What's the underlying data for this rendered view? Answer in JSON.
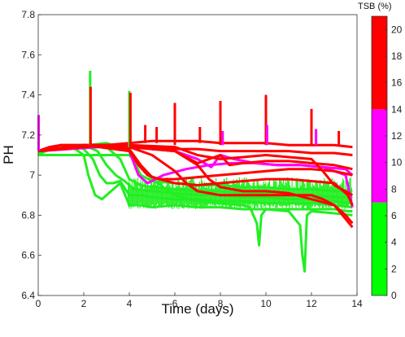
{
  "chart_data": {
    "type": "line",
    "xlabel": "Time (days)",
    "ylabel": "PH",
    "xlim": [
      0,
      14
    ],
    "ylim": [
      6.4,
      7.8
    ],
    "xticks": [
      0,
      2,
      4,
      6,
      8,
      10,
      12,
      14
    ],
    "yticks": [
      6.4,
      6.6,
      6.8,
      7.0,
      7.2,
      7.4,
      7.6,
      7.8
    ],
    "ytick_labels": [
      "6.4",
      "6.6",
      "6.8",
      "7",
      "7.2",
      "7.4",
      "7.6",
      "7.8"
    ],
    "grid": false,
    "colorbar": {
      "title": "TSB (%)",
      "range": [
        0,
        21
      ],
      "ticks": [
        0,
        2,
        4,
        6,
        8,
        10,
        12,
        14,
        16,
        18,
        20
      ],
      "bands": [
        {
          "from": 0,
          "to": 7,
          "color": "#00ff00"
        },
        {
          "from": 7,
          "to": 14,
          "color": "#ff00ff"
        },
        {
          "from": 14,
          "to": 21,
          "color": "#ff0000"
        }
      ]
    },
    "series": [
      {
        "color": "#22ee22",
        "x": [
          0,
          0.3,
          1,
          1.5,
          2,
          2.2,
          2.5,
          2.8,
          3,
          3.3,
          3.6,
          4,
          4.5,
          5,
          6,
          7,
          8,
          9,
          10,
          11,
          12,
          13,
          13.6,
          13.8
        ],
        "y": [
          7.1,
          7.13,
          7.14,
          7.14,
          7.1,
          7.0,
          6.9,
          6.88,
          6.9,
          6.93,
          6.96,
          6.85,
          6.85,
          6.84,
          6.85,
          6.84,
          6.84,
          6.83,
          6.83,
          6.83,
          6.83,
          6.83,
          6.82,
          6.82
        ]
      },
      {
        "color": "#22ee22",
        "x": [
          0,
          0.5,
          1,
          1.5,
          2,
          2.4,
          2.7,
          3,
          3.3,
          3.6,
          4,
          4.5,
          5,
          6,
          7,
          8,
          9,
          10,
          11,
          12,
          13,
          13.8
        ],
        "y": [
          7.1,
          7.13,
          7.14,
          7.15,
          7.13,
          7.08,
          7.0,
          6.96,
          6.96,
          6.97,
          6.9,
          6.9,
          6.89,
          6.88,
          6.88,
          6.87,
          6.87,
          6.86,
          6.86,
          6.86,
          6.85,
          6.84
        ]
      },
      {
        "color": "#22ee22",
        "x": [
          0,
          1,
          2,
          2.6,
          3,
          3.4,
          3.8,
          4.2,
          5,
          6,
          7,
          8,
          9,
          10,
          11,
          12,
          13,
          13.8
        ],
        "y": [
          7.11,
          7.14,
          7.15,
          7.12,
          7.05,
          7.0,
          6.97,
          6.93,
          6.92,
          6.91,
          6.9,
          6.9,
          6.89,
          6.89,
          6.88,
          6.88,
          6.87,
          6.86
        ]
      },
      {
        "color": "#22ee22",
        "x": [
          0,
          1,
          2,
          3,
          3.6,
          4,
          4.5,
          5,
          6,
          7,
          8,
          9,
          10,
          11,
          12,
          13,
          13.8
        ],
        "y": [
          7.11,
          7.14,
          7.15,
          7.14,
          7.08,
          6.98,
          6.95,
          6.94,
          6.93,
          6.92,
          6.92,
          6.91,
          6.91,
          6.9,
          6.9,
          6.89,
          6.89
        ]
      },
      {
        "color": "#22ee22",
        "x": [
          0,
          4,
          5,
          6,
          7,
          8,
          9,
          9.3,
          9.6,
          9.7,
          9.8,
          10,
          11,
          11.5,
          11.6,
          11.7,
          11.8,
          12,
          13,
          13.8
        ],
        "y": [
          7.1,
          7.1,
          6.98,
          6.9,
          6.87,
          6.86,
          6.85,
          6.84,
          6.76,
          6.65,
          6.8,
          6.83,
          6.82,
          6.75,
          6.6,
          6.52,
          6.8,
          6.82,
          6.81,
          6.8
        ]
      },
      {
        "color": "#22ee22",
        "x": [
          0,
          3,
          4,
          4.5,
          5,
          6,
          7,
          8,
          9,
          10,
          11,
          12,
          13,
          13.8
        ],
        "y": [
          7.12,
          7.16,
          7.12,
          7.0,
          6.97,
          6.96,
          6.95,
          6.95,
          6.94,
          6.94,
          6.93,
          6.93,
          6.92,
          6.92
        ]
      },
      {
        "color": "#ff00ff",
        "x": [
          0,
          2,
          3,
          4,
          4.4,
          4.8,
          5.5,
          6.5,
          7.5,
          8.5,
          9.5,
          10.5,
          11.5,
          12.5,
          13.5,
          13.8
        ],
        "y": [
          7.12,
          7.15,
          7.15,
          7.12,
          7.0,
          6.96,
          7.0,
          7.03,
          7.05,
          7.06,
          7.06,
          7.05,
          7.05,
          7.04,
          7.03,
          7.0
        ]
      },
      {
        "color": "#ff00ff",
        "x": [
          0,
          4,
          5,
          6,
          7,
          7.6,
          8,
          8.6,
          9.5,
          10.5,
          11.5,
          12.5,
          13.5,
          13.8
        ],
        "y": [
          7.12,
          7.15,
          7.14,
          7.12,
          7.08,
          7.04,
          7.1,
          7.08,
          7.06,
          7.05,
          7.05,
          7.04,
          7.0,
          6.84
        ]
      },
      {
        "color": "#ff0000",
        "x": [
          0,
          0.5,
          1,
          2,
          3,
          4,
          5,
          6,
          7,
          8,
          9,
          10,
          11,
          12,
          13,
          13.8
        ],
        "y": [
          7.12,
          7.14,
          7.15,
          7.15,
          7.15,
          7.16,
          7.17,
          7.17,
          7.17,
          7.16,
          7.16,
          7.16,
          7.15,
          7.15,
          7.15,
          7.14
        ]
      },
      {
        "color": "#ff0000",
        "x": [
          0,
          1,
          2,
          3,
          4,
          5,
          6,
          7,
          8,
          9,
          10,
          11,
          12,
          13,
          13.8
        ],
        "y": [
          7.12,
          7.15,
          7.15,
          7.15,
          7.14,
          7.14,
          7.13,
          7.13,
          7.12,
          7.12,
          7.12,
          7.12,
          7.11,
          7.11,
          7.1
        ]
      },
      {
        "color": "#ff0000",
        "x": [
          0,
          2,
          4,
          4.4,
          4.8,
          5.3,
          6,
          7,
          8,
          9,
          10,
          11,
          12,
          13,
          13.8
        ],
        "y": [
          7.12,
          7.15,
          7.12,
          7.05,
          7.0,
          6.98,
          6.98,
          6.99,
          7.0,
          7.01,
          7.02,
          7.03,
          7.03,
          7.02,
          7.0
        ]
      },
      {
        "color": "#ff0000",
        "x": [
          0,
          2,
          4,
          4.5,
          5,
          6,
          7,
          8,
          9,
          10,
          11,
          12,
          13,
          13.6,
          13.8
        ],
        "y": [
          7.12,
          7.15,
          7.13,
          7.05,
          6.99,
          6.96,
          6.95,
          6.96,
          6.97,
          6.98,
          6.98,
          6.97,
          6.96,
          6.9,
          6.85
        ]
      },
      {
        "color": "#ff0000",
        "x": [
          0,
          2,
          4,
          5,
          6,
          6.5,
          7,
          8,
          9,
          10,
          11,
          12,
          12.5,
          13,
          13.8
        ],
        "y": [
          7.12,
          7.15,
          7.14,
          7.1,
          7.02,
          6.96,
          6.92,
          6.9,
          6.9,
          6.9,
          6.9,
          6.9,
          6.88,
          6.85,
          6.74
        ]
      },
      {
        "color": "#ff0000",
        "x": [
          0,
          2,
          4,
          6,
          7,
          7.5,
          8,
          9,
          10,
          11,
          12,
          13,
          13.5,
          13.8
        ],
        "y": [
          7.12,
          7.15,
          7.14,
          7.12,
          7.05,
          6.98,
          6.94,
          6.92,
          6.92,
          6.91,
          6.88,
          6.85,
          6.8,
          6.76
        ]
      },
      {
        "color": "#ff0000",
        "x": [
          0,
          3,
          4,
          6,
          7,
          8,
          8.4,
          9,
          10,
          11,
          12,
          13,
          13.8
        ],
        "y": [
          7.12,
          7.15,
          7.14,
          7.12,
          7.06,
          7.1,
          7.05,
          7.06,
          7.07,
          7.07,
          7.06,
          7.05,
          7.03
        ]
      },
      {
        "color": "#ff0000",
        "x": [
          0,
          3,
          4,
          6,
          7,
          8,
          9,
          10,
          11,
          12,
          12.5,
          13,
          13.8
        ],
        "y": [
          7.12,
          7.15,
          7.15,
          7.14,
          7.1,
          7.08,
          7.09,
          7.1,
          7.09,
          7.08,
          7.02,
          6.95,
          6.9
        ]
      }
    ],
    "spikes": [
      {
        "x": 0.02,
        "y_base": 7.12,
        "y_peak": 7.3,
        "color": "#ff00ff"
      },
      {
        "x": 2.28,
        "y_base": 7.15,
        "y_peak": 7.52,
        "color": "#22ee22"
      },
      {
        "x": 2.3,
        "y_base": 7.15,
        "y_peak": 7.44,
        "color": "#ff0000"
      },
      {
        "x": 4.0,
        "y_base": 7.14,
        "y_peak": 7.42,
        "color": "#22ee22"
      },
      {
        "x": 4.05,
        "y_base": 7.14,
        "y_peak": 7.41,
        "color": "#ff0000"
      },
      {
        "x": 4.7,
        "y_base": 7.16,
        "y_peak": 7.25,
        "color": "#ff0000"
      },
      {
        "x": 5.2,
        "y_base": 7.16,
        "y_peak": 7.24,
        "color": "#ff0000"
      },
      {
        "x": 6.0,
        "y_base": 7.15,
        "y_peak": 7.36,
        "color": "#ff0000"
      },
      {
        "x": 7.1,
        "y_base": 7.16,
        "y_peak": 7.24,
        "color": "#ff0000"
      },
      {
        "x": 8.0,
        "y_base": 7.15,
        "y_peak": 7.37,
        "color": "#ff0000"
      },
      {
        "x": 8.1,
        "y_base": 7.15,
        "y_peak": 7.22,
        "color": "#ff00ff"
      },
      {
        "x": 10.0,
        "y_base": 7.15,
        "y_peak": 7.4,
        "color": "#ff0000"
      },
      {
        "x": 10.05,
        "y_base": 7.15,
        "y_peak": 7.25,
        "color": "#ff00ff"
      },
      {
        "x": 12.0,
        "y_base": 7.15,
        "y_peak": 7.33,
        "color": "#ff0000"
      },
      {
        "x": 12.2,
        "y_base": 7.15,
        "y_peak": 7.23,
        "color": "#ff00ff"
      },
      {
        "x": 13.2,
        "y_base": 7.15,
        "y_peak": 7.22,
        "color": "#ff0000"
      }
    ],
    "green_band": {
      "color": "#22ee22",
      "x_start": 3.95,
      "x_end": 13.8,
      "y_low": 6.83,
      "y_high": 6.99
    }
  }
}
